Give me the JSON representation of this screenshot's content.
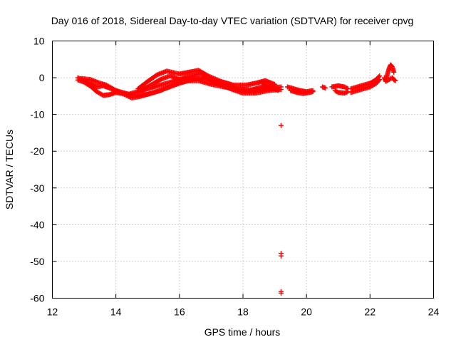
{
  "chart_data": {
    "type": "scatter",
    "title": "Day 016 of 2018, Sidereal Day-to-day VTEC variation (SDTVAR) for receiver cpvg",
    "xlabel": "GPS time / hours",
    "ylabel": "SDTVAR / TECUs",
    "xlim": [
      12,
      24
    ],
    "ylim": [
      -60,
      10
    ],
    "x_ticks": [
      12,
      14,
      16,
      18,
      20,
      22,
      24
    ],
    "y_ticks": [
      10,
      0,
      -10,
      -20,
      -30,
      -40,
      -50,
      -60
    ],
    "x_tick_labels": [
      "12",
      "14",
      "16",
      "18",
      "20",
      "22",
      "24"
    ],
    "y_tick_labels": [
      "10",
      "0",
      "-10",
      "-20",
      "-30",
      "-40",
      "-50",
      "-60"
    ],
    "grid": true,
    "marker": "+",
    "series": [
      {
        "name": "SDTVAR",
        "color": "#ff0000",
        "tracks": [
          [
            [
              12.8,
              0.0
            ],
            [
              13.0,
              -0.8
            ],
            [
              13.2,
              -1.5
            ],
            [
              13.4,
              -2.5
            ],
            [
              13.6,
              -2.2
            ],
            [
              13.8,
              -2.8
            ],
            [
              14.0,
              -3.5
            ],
            [
              14.4,
              -4.5
            ],
            [
              14.8,
              -3.5
            ],
            [
              15.2,
              -2.5
            ],
            [
              15.6,
              -1.5
            ],
            [
              16.0,
              -0.5
            ],
            [
              16.4,
              -0.3
            ],
            [
              16.8,
              -0.3
            ],
            [
              17.2,
              -1.2
            ],
            [
              17.6,
              -2.8
            ],
            [
              18.0,
              -3.8
            ],
            [
              18.4,
              -3.5
            ],
            [
              18.8,
              -2.8
            ],
            [
              19.2,
              -2.5
            ]
          ],
          [
            [
              12.8,
              -0.6
            ],
            [
              13.0,
              -1.2
            ],
            [
              13.2,
              -2.3
            ],
            [
              13.4,
              -3.8
            ],
            [
              13.6,
              -4.8
            ],
            [
              13.8,
              -4.6
            ],
            [
              14.0,
              -4.0
            ],
            [
              14.2,
              -4.3
            ],
            [
              14.5,
              -5.5
            ],
            [
              14.8,
              -5.0
            ],
            [
              15.2,
              -4.0
            ],
            [
              15.6,
              -2.8
            ],
            [
              16.0,
              -1.5
            ],
            [
              16.4,
              -0.5
            ],
            [
              16.8,
              0.0
            ],
            [
              17.2,
              -1.5
            ],
            [
              17.6,
              -3.0
            ],
            [
              18.0,
              -4.2
            ],
            [
              18.4,
              -4.2
            ],
            [
              18.8,
              -3.5
            ],
            [
              19.2,
              -3.2
            ]
          ],
          [
            [
              12.9,
              -0.2
            ],
            [
              13.2,
              -0.5
            ],
            [
              13.5,
              -1.5
            ],
            [
              13.7,
              -2.0
            ],
            [
              13.9,
              -3.0
            ],
            [
              14.1,
              -4.0
            ],
            [
              14.3,
              -4.3
            ],
            [
              14.6,
              -4.8
            ],
            [
              15.0,
              -4.5
            ],
            [
              15.4,
              -3.5
            ],
            [
              15.8,
              -2.0
            ],
            [
              16.2,
              -0.8
            ],
            [
              16.6,
              -0.8
            ],
            [
              17.0,
              -1.8
            ],
            [
              17.4,
              -2.5
            ],
            [
              17.8,
              -3.0
            ],
            [
              18.2,
              -3.3
            ],
            [
              18.6,
              -3.2
            ],
            [
              19.0,
              -3.0
            ]
          ],
          [
            [
              14.7,
              -3.0
            ],
            [
              15.0,
              -1.0
            ],
            [
              15.3,
              0.8
            ],
            [
              15.6,
              1.8
            ],
            [
              16.0,
              1.0
            ],
            [
              16.3,
              1.5
            ],
            [
              16.6,
              2.0
            ],
            [
              16.9,
              0.5
            ],
            [
              17.3,
              -1.0
            ],
            [
              17.7,
              -2.0
            ],
            [
              18.1,
              -2.0
            ],
            [
              18.4,
              -1.5
            ],
            [
              18.7,
              -0.8
            ],
            [
              19.0,
              -1.8
            ]
          ],
          [
            [
              14.8,
              -3.5
            ],
            [
              15.1,
              -2.0
            ],
            [
              15.4,
              -0.5
            ],
            [
              15.7,
              0.5
            ],
            [
              16.0,
              -0.5
            ],
            [
              16.4,
              0.5
            ],
            [
              16.7,
              1.2
            ],
            [
              17.0,
              -0.5
            ],
            [
              17.4,
              -2.0
            ],
            [
              17.8,
              -3.0
            ],
            [
              18.2,
              -3.5
            ],
            [
              18.6,
              -2.5
            ],
            [
              19.0,
              -2.2
            ]
          ],
          [
            [
              18.6,
              -1.5
            ],
            [
              18.9,
              -2.5
            ],
            [
              19.1,
              -3.5
            ]
          ],
          [
            [
              19.4,
              -2.5
            ],
            [
              19.6,
              -3.0
            ],
            [
              19.8,
              -3.5
            ],
            [
              20.0,
              -3.8
            ],
            [
              20.2,
              -3.5
            ]
          ],
          [
            [
              19.5,
              -3.5
            ],
            [
              19.7,
              -4.0
            ],
            [
              19.9,
              -4.3
            ],
            [
              20.1,
              -4.0
            ],
            [
              20.2,
              -3.8
            ]
          ],
          [
            [
              20.5,
              -2.5
            ],
            [
              20.6,
              -2.8
            ]
          ],
          [
            [
              20.8,
              -2.5
            ],
            [
              21.0,
              -2.2
            ],
            [
              21.2,
              -2.5
            ],
            [
              21.3,
              -3.0
            ]
          ],
          [
            [
              20.9,
              -3.5
            ],
            [
              21.0,
              -4.0
            ],
            [
              21.2,
              -4.2
            ],
            [
              21.3,
              -3.8
            ]
          ],
          [
            [
              21.4,
              -3.0
            ],
            [
              21.6,
              -2.5
            ],
            [
              21.8,
              -2.0
            ],
            [
              22.0,
              -1.5
            ],
            [
              22.2,
              -0.5
            ],
            [
              22.3,
              0.5
            ]
          ],
          [
            [
              21.4,
              -4.0
            ],
            [
              21.6,
              -3.5
            ],
            [
              21.8,
              -3.0
            ],
            [
              22.0,
              -2.5
            ],
            [
              22.2,
              -1.5
            ],
            [
              22.3,
              -0.5
            ]
          ],
          [
            [
              22.5,
              -0.5
            ],
            [
              22.55,
              1.0
            ],
            [
              22.6,
              2.5
            ],
            [
              22.65,
              3.5
            ],
            [
              22.7,
              3.0
            ],
            [
              22.75,
              1.5
            ]
          ],
          [
            [
              22.45,
              0.0
            ],
            [
              22.5,
              -1.0
            ],
            [
              22.6,
              -0.5
            ],
            [
              22.7,
              0.0
            ],
            [
              22.75,
              -0.5
            ],
            [
              22.8,
              -0.8
            ]
          ]
        ],
        "outliers": [
          [
            19.2,
            -13
          ],
          [
            19.2,
            -47.8
          ],
          [
            19.2,
            -48.5
          ],
          [
            19.2,
            -58.2
          ],
          [
            19.2,
            -58.6
          ]
        ]
      }
    ]
  }
}
